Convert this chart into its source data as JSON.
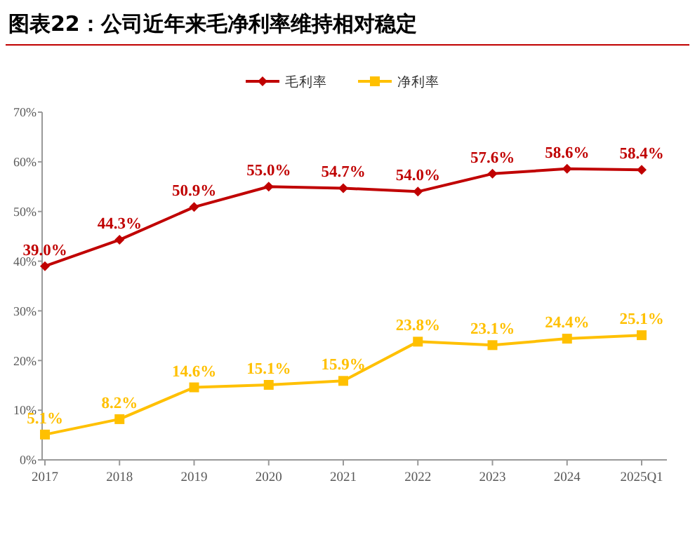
{
  "chart_data": {
    "type": "line",
    "title": "图表22：公司近年来毛净利率维持相对稳定",
    "categories": [
      "2017",
      "2018",
      "2019",
      "2020",
      "2021",
      "2022",
      "2023",
      "2024",
      "2025Q1"
    ],
    "series": [
      {
        "name": "毛利率",
        "color": "#c00000",
        "marker": "diamond",
        "values": [
          39.0,
          44.3,
          50.9,
          55.0,
          54.7,
          54.0,
          57.6,
          58.6,
          58.4
        ],
        "value_labels": [
          "39.0%",
          "44.3%",
          "50.9%",
          "55.0%",
          "54.7%",
          "54.0%",
          "57.6%",
          "58.6%",
          "58.4%"
        ]
      },
      {
        "name": "净利率",
        "color": "#ffc000",
        "marker": "square",
        "values": [
          5.1,
          8.2,
          14.6,
          15.1,
          15.9,
          23.8,
          23.1,
          24.4,
          25.1
        ],
        "value_labels": [
          "5.1%",
          "8.2%",
          "14.6%",
          "15.1%",
          "15.9%",
          "23.8%",
          "23.1%",
          "24.4%",
          "25.1%"
        ]
      }
    ],
    "ylim": [
      0,
      70
    ],
    "yticks": [
      {
        "value": 0,
        "label": "0%"
      },
      {
        "value": 10,
        "label": "10%"
      },
      {
        "value": 20,
        "label": "20%"
      },
      {
        "value": 30,
        "label": "30%"
      },
      {
        "value": 40,
        "label": "40%"
      },
      {
        "value": 50,
        "label": "50%"
      },
      {
        "value": 60,
        "label": "60%"
      },
      {
        "value": 70,
        "label": "70%"
      }
    ],
    "grid": false,
    "legend": "top",
    "line_style": "solid"
  }
}
